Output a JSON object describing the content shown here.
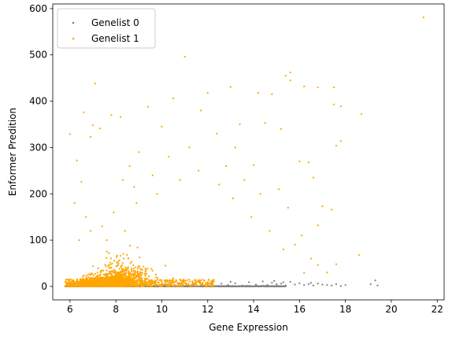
{
  "chart_data": {
    "type": "scatter",
    "title": "",
    "xlabel": "Gene Expression",
    "ylabel": "Enformer Predition",
    "xlim": [
      5.25,
      22.3
    ],
    "ylim": [
      -29,
      610
    ],
    "xticks": [
      6,
      8,
      10,
      12,
      14,
      16,
      18,
      20,
      22
    ],
    "yticks": [
      0,
      100,
      200,
      300,
      400,
      500,
      600
    ],
    "grid": false,
    "legend_position": "top-left",
    "series": [
      {
        "name": "Genelist 0",
        "color": "#808080",
        "marker": "dot",
        "points": [
          [
            5.8,
            0
          ],
          [
            6.0,
            1
          ],
          [
            6.3,
            0
          ],
          [
            6.6,
            2
          ],
          [
            6.9,
            1
          ],
          [
            7.2,
            0
          ],
          [
            7.5,
            2
          ],
          [
            7.8,
            1
          ],
          [
            8.1,
            3
          ],
          [
            8.4,
            0
          ],
          [
            8.7,
            2
          ],
          [
            9.0,
            1
          ],
          [
            9.3,
            3
          ],
          [
            9.6,
            0
          ],
          [
            9.9,
            2
          ],
          [
            10.2,
            4
          ],
          [
            10.5,
            1
          ],
          [
            10.8,
            3
          ],
          [
            11.1,
            0
          ],
          [
            11.4,
            5
          ],
          [
            11.7,
            2
          ],
          [
            12.0,
            4
          ],
          [
            12.3,
            1
          ],
          [
            12.6,
            6
          ],
          [
            12.9,
            3
          ],
          [
            13.2,
            7
          ],
          [
            13.5,
            2
          ],
          [
            13.8,
            9
          ],
          [
            14.1,
            4
          ],
          [
            14.4,
            11
          ],
          [
            14.6,
            3
          ],
          [
            14.8,
            8
          ],
          [
            15.0,
            5
          ],
          [
            15.2,
            6
          ],
          [
            15.4,
            2
          ],
          [
            15.6,
            10
          ],
          [
            15.8,
            4
          ],
          [
            16.0,
            7
          ],
          [
            16.2,
            3
          ],
          [
            16.4,
            5
          ],
          [
            16.6,
            2
          ],
          [
            16.8,
            6
          ],
          [
            17.0,
            4
          ],
          [
            17.2,
            3
          ],
          [
            17.4,
            2
          ],
          [
            17.6,
            5
          ],
          [
            17.8,
            1
          ],
          [
            18.0,
            3
          ],
          [
            19.1,
            5
          ],
          [
            19.3,
            13
          ],
          [
            19.4,
            2
          ],
          [
            9.5,
            5
          ],
          [
            10.7,
            6
          ],
          [
            12.2,
            8
          ],
          [
            13.0,
            10
          ],
          [
            14.9,
            12
          ],
          [
            15.3,
            9
          ],
          [
            16.5,
            8
          ]
        ]
      },
      {
        "name": "Genelist 1",
        "color": "#ffa500",
        "marker": "dot",
        "points": [
          [
            21.4,
            581
          ],
          [
            11.0,
            496
          ],
          [
            15.6,
            462
          ],
          [
            15.4,
            455
          ],
          [
            7.1,
            438
          ],
          [
            15.6,
            445
          ],
          [
            16.2,
            432
          ],
          [
            13.0,
            431
          ],
          [
            16.8,
            430
          ],
          [
            17.5,
            430
          ],
          [
            14.2,
            418
          ],
          [
            14.8,
            415
          ],
          [
            17.5,
            393
          ],
          [
            17.8,
            389
          ],
          [
            10.5,
            406
          ],
          [
            9.4,
            388
          ],
          [
            18.7,
            372
          ],
          [
            17.6,
            304
          ],
          [
            17.8,
            314
          ],
          [
            6.9,
            323
          ],
          [
            7.8,
            370
          ],
          [
            8.2,
            366
          ],
          [
            6.6,
            376
          ],
          [
            6.0,
            329
          ],
          [
            6.3,
            272
          ],
          [
            6.5,
            226
          ],
          [
            7.0,
            348
          ],
          [
            7.3,
            341
          ],
          [
            12.0,
            418
          ],
          [
            11.7,
            380
          ],
          [
            13.4,
            350
          ],
          [
            14.5,
            353
          ],
          [
            15.2,
            340
          ],
          [
            16.0,
            270
          ],
          [
            16.4,
            268
          ],
          [
            16.6,
            235
          ],
          [
            17.0,
            173
          ],
          [
            16.8,
            132
          ],
          [
            17.4,
            166
          ],
          [
            18.6,
            68
          ],
          [
            17.6,
            48
          ],
          [
            16.8,
            46
          ],
          [
            16.2,
            29
          ],
          [
            15.1,
            210
          ],
          [
            14.0,
            262
          ],
          [
            13.2,
            300
          ],
          [
            12.4,
            330
          ],
          [
            10.0,
            345
          ],
          [
            9.0,
            290
          ],
          [
            8.6,
            260
          ],
          [
            8.3,
            230
          ],
          [
            8.8,
            215
          ],
          [
            9.6,
            240
          ],
          [
            10.3,
            280
          ],
          [
            11.2,
            300
          ],
          [
            12.8,
            260
          ],
          [
            13.6,
            230
          ],
          [
            14.3,
            200
          ],
          [
            15.5,
            170
          ],
          [
            16.1,
            110
          ],
          [
            15.8,
            90
          ],
          [
            16.5,
            60
          ],
          [
            17.2,
            30
          ],
          [
            6.2,
            180
          ],
          [
            6.7,
            150
          ],
          [
            7.4,
            130
          ],
          [
            7.9,
            160
          ],
          [
            8.9,
            180
          ],
          [
            9.8,
            200
          ],
          [
            10.8,
            230
          ],
          [
            11.6,
            250
          ],
          [
            12.5,
            220
          ],
          [
            13.1,
            190
          ],
          [
            13.9,
            150
          ],
          [
            14.7,
            120
          ],
          [
            15.3,
            80
          ],
          [
            6.4,
            100
          ],
          [
            6.9,
            120
          ],
          [
            7.6,
            100
          ],
          [
            8.4,
            120
          ]
        ]
      }
    ]
  }
}
